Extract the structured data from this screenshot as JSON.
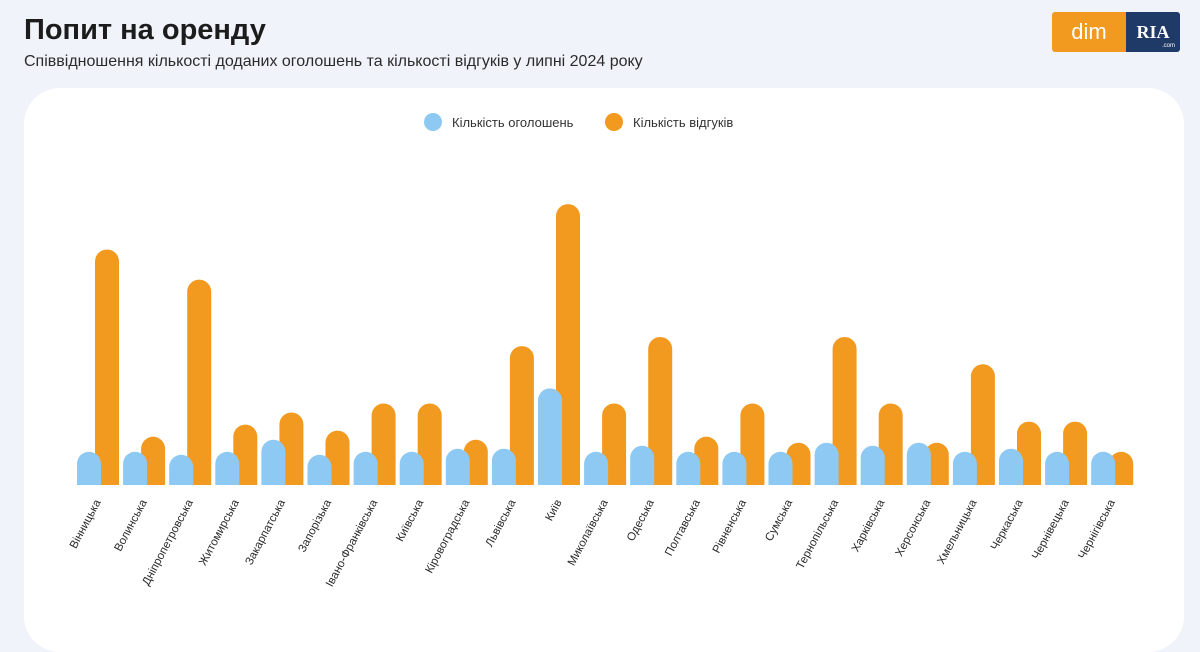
{
  "header": {
    "title": "Попит на оренду",
    "subtitle": "Співвідношення кількості доданих оголошень та кількості відгуків у липні 2024 року"
  },
  "logo": {
    "left_text": "dim",
    "right_text": "RIA",
    "right_sub": ".com"
  },
  "colors": {
    "listings": "#8dc9f2",
    "responses": "#f29a1f",
    "background": "#f1f3fa",
    "card": "#ffffff"
  },
  "chart_data": {
    "type": "bar",
    "title": "",
    "xlabel": "",
    "ylabel": "",
    "ylim": [
      0,
      100
    ],
    "axis_hidden": true,
    "legend_position": "top-center",
    "categories": [
      "Вінницька",
      "Волинська",
      "Дніпропетровська",
      "Житомирська",
      "Закарпатська",
      "Запорізька",
      "Івано-Франківська",
      "Київська",
      "Кіровоградська",
      "Львівська",
      "Київ",
      "Миколаївська",
      "Одеська",
      "Полтавська",
      "Рівненська",
      "Сумська",
      "Тернопільська",
      "Харківська",
      "Херсонська",
      "Хмельницька",
      "Черкаська",
      "Чернівецька",
      "Чернігівська"
    ],
    "series": [
      {
        "name": "Кількість оголошень",
        "values": [
          11,
          11,
          10,
          11,
          15,
          10,
          11,
          11,
          12,
          12,
          32,
          11,
          13,
          11,
          11,
          11,
          14,
          13,
          14,
          11,
          12,
          11,
          11
        ]
      },
      {
        "name": "Кількість відгуків",
        "values": [
          78,
          16,
          68,
          20,
          24,
          18,
          27,
          27,
          15,
          46,
          93,
          27,
          49,
          16,
          27,
          14,
          49,
          27,
          14,
          40,
          21,
          21,
          11
        ]
      }
    ]
  }
}
